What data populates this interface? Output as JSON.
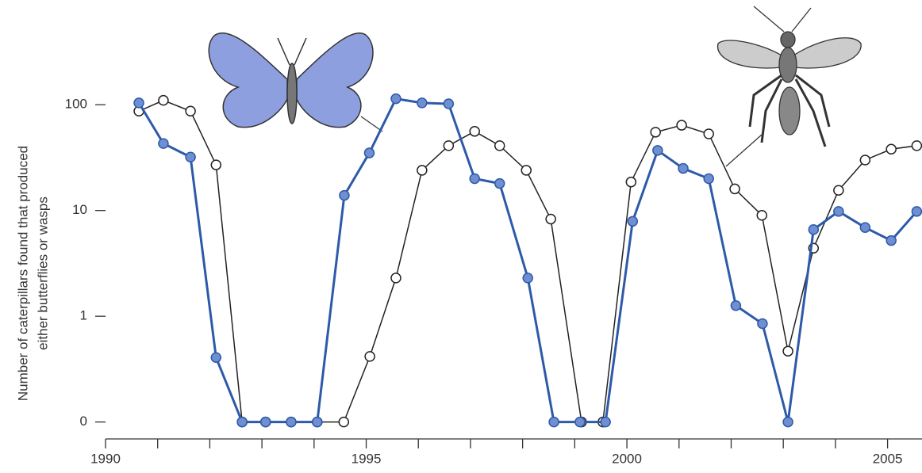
{
  "chart_data": {
    "type": "line",
    "ylabel": [
      "Number of caterpillars found that produced",
      "either butterflies or wasps"
    ],
    "yscale": "symlog",
    "xlim": [
      1990,
      2005.63
    ],
    "xticks": [
      1990,
      1995,
      2000,
      2005
    ],
    "xminorticks": [
      1991,
      1992,
      1993,
      1994,
      1996,
      1997,
      1998,
      1999,
      2001,
      2002,
      2003,
      2004
    ],
    "ylim": [
      -0.16,
      200
    ],
    "yticks": [
      0,
      1,
      10,
      100
    ],
    "series": [
      {
        "color": "#2d5aa8",
        "marker_fill": "#6f8fd2",
        "x": [
          1990.64,
          1991.11,
          1991.63,
          1992.12,
          1992.62,
          1993.07,
          1993.56,
          1994.06,
          1994.58,
          1995.06,
          1995.57,
          1996.07,
          1996.58,
          1997.08,
          1997.56,
          1998.1,
          1998.6,
          1999.1,
          1999.59,
          2000.11,
          2000.59,
          2001.08,
          2001.57,
          2002.09,
          2002.6,
          2003.09,
          2003.58,
          2004.06,
          2004.57,
          2005.07,
          2005.56
        ],
        "values": [
          104,
          43,
          32,
          0.61,
          0,
          0,
          0,
          0,
          13.9,
          35,
          114,
          104,
          102,
          20,
          18,
          2.3,
          0,
          0,
          0,
          7.9,
          37,
          25,
          20,
          1.26,
          0.93,
          0,
          6.6,
          9.8,
          6.9,
          5.2,
          9.8
        ]
      },
      {
        "color": "#222222",
        "marker_fill": "#ffffff",
        "x": [
          1990.64,
          1991.11,
          1991.63,
          1992.12,
          1992.62,
          1993.07,
          1993.56,
          1994.06,
          1994.57,
          1995.07,
          1995.57,
          1996.07,
          1996.58,
          1997.08,
          1997.56,
          1998.07,
          1998.54,
          1999.13,
          1999.54,
          2000.08,
          2000.55,
          2001.05,
          2001.57,
          2002.07,
          2002.59,
          2003.09,
          2003.58,
          2004.06,
          2004.57,
          2005.07,
          2005.56
        ],
        "values": [
          87,
          110,
          87,
          27,
          0,
          0,
          0,
          0,
          0,
          0.62,
          2.3,
          24,
          41,
          56,
          41,
          24,
          8.3,
          0,
          0,
          18.6,
          55,
          64,
          53,
          16,
          9.0,
          0.67,
          4.4,
          15.5,
          30,
          38,
          41
        ]
      }
    ]
  }
}
